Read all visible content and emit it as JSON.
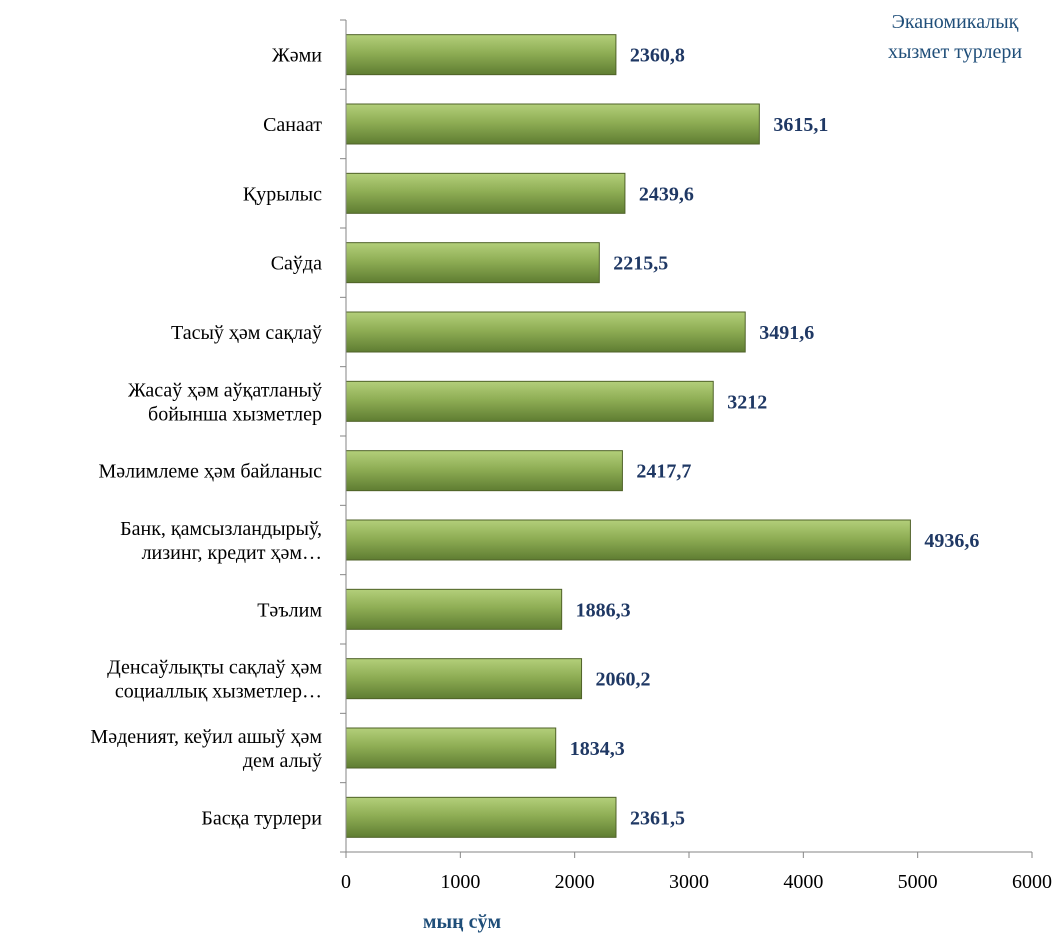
{
  "chart_data": {
    "type": "bar",
    "orientation": "horizontal",
    "title": "",
    "legend_title": [
      "Эканомикалық",
      "хызмет турлери"
    ],
    "legend_placement": "top-right",
    "xlabel": "мың сўм",
    "ylabel": "",
    "xlim": [
      0,
      6000
    ],
    "xticks": [
      0,
      1000,
      2000,
      3000,
      4000,
      5000,
      6000
    ],
    "grid": false,
    "categories": [
      [
        "Жәми"
      ],
      [
        "Санаат"
      ],
      [
        "Қурылыс"
      ],
      [
        "Саўда"
      ],
      [
        "Тасыў ҳәм сақлаў"
      ],
      [
        "Жасаў ҳәм аўқатланыў",
        "бойынша хызметлер"
      ],
      [
        "Мәлимлеме ҳәм байланыс"
      ],
      [
        "Банк, қамсызландырыў,",
        "лизинг, кредит ҳәм…"
      ],
      [
        "Тәълим"
      ],
      [
        "Денсаўлықты сақлаў  ҳәм",
        "социаллық хызметлер…"
      ],
      [
        "Мәденият, кеўил ашыў ҳәм",
        "дем алыў"
      ],
      [
        "Басқа турлери"
      ]
    ],
    "values": [
      2360.8,
      3615.1,
      2439.6,
      2215.5,
      3491.6,
      3212,
      2417.7,
      4936.6,
      1886.3,
      2060.2,
      1834.3,
      2361.5
    ],
    "value_labels": [
      "2360,8",
      "3615,1",
      "2439,6",
      "2215,5",
      "3491,6",
      "3212",
      "2417,7",
      "4936,6",
      "1886,3",
      "2060,2",
      "1834,3",
      "2361,5"
    ],
    "colors": {
      "bar_top": "#9bbb59",
      "bar_bottom": "#6e8f3d",
      "bar_edge": "#4f6228",
      "data_label": "#1f3864",
      "legend_text": "#1f4e79",
      "axis": "#868686"
    }
  }
}
